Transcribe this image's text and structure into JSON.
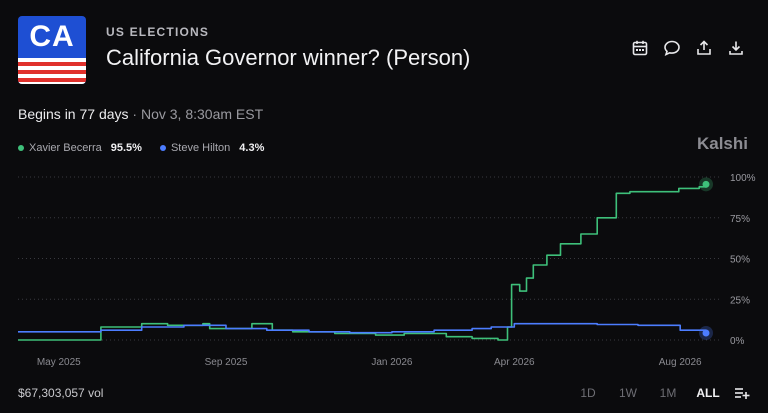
{
  "market": {
    "flag_code": "CA",
    "category": "US ELECTIONS",
    "title": "California Governor winner? (Person)",
    "begins_prefix": "Begins in 77 days",
    "begins_suffix": " · Nov 3, 8:30am EST",
    "brand": "Kalshi",
    "volume": "$67,303,057 vol"
  },
  "icons": {
    "calendar": "calendar-icon",
    "comment": "comment-icon",
    "share": "share-icon",
    "download": "download-icon",
    "add": "add-list-icon"
  },
  "legend": [
    {
      "name": "Xavier Becerra",
      "value": "95.5%",
      "color": "#3ec07a"
    },
    {
      "name": "Steve Hilton",
      "value": "4.3%",
      "color": "#4c7dff"
    }
  ],
  "ranges": [
    "1D",
    "1W",
    "1M",
    "ALL"
  ],
  "active_range": "ALL",
  "chart_data": {
    "type": "line",
    "x_tick_labels": [
      "May 2025",
      "Sep 2025",
      "Jan 2026",
      "Apr 2026",
      "Aug 2026"
    ],
    "y_tick_labels": [
      "100%",
      "75%",
      "50%",
      "25%",
      "0%"
    ],
    "ylim": [
      0,
      100
    ],
    "grid": true,
    "series": [
      {
        "name": "Xavier Becerra",
        "color": "#3ec07a",
        "x": [
          "2025-04-01",
          "2025-05-31",
          "2025-06-01",
          "2025-06-20",
          "2025-07-01",
          "2025-07-20",
          "2025-08-15",
          "2025-08-20",
          "2025-09-20",
          "2025-10-05",
          "2025-10-20",
          "2025-11-20",
          "2025-12-20",
          "2026-01-10",
          "2026-02-10",
          "2026-03-01",
          "2026-03-20",
          "2026-03-27",
          "2026-03-30",
          "2026-04-05",
          "2026-04-10",
          "2026-04-15",
          "2026-04-25",
          "2026-05-05",
          "2026-05-20",
          "2026-06-01",
          "2026-06-15",
          "2026-06-25",
          "2026-07-15",
          "2026-07-31",
          "2026-08-15",
          "2026-08-20"
        ],
        "y": [
          0,
          0,
          8,
          8,
          10,
          9,
          10,
          7,
          10,
          6,
          5,
          4,
          3,
          4,
          2,
          1,
          0,
          8,
          34,
          30,
          38,
          46,
          52,
          59,
          65,
          75,
          90,
          91,
          91,
          93,
          94,
          95.5
        ]
      },
      {
        "name": "Steve Hilton",
        "color": "#4c7dff",
        "x": [
          "2025-04-01",
          "2025-05-01",
          "2025-06-01",
          "2025-07-01",
          "2025-08-01",
          "2025-09-01",
          "2025-10-01",
          "2025-11-01",
          "2025-12-01",
          "2026-01-01",
          "2026-02-01",
          "2026-03-01",
          "2026-03-15",
          "2026-04-01",
          "2026-05-01",
          "2026-06-01",
          "2026-07-01",
          "2026-08-01",
          "2026-08-20"
        ],
        "y": [
          5,
          5,
          6,
          8,
          9,
          7,
          6,
          5,
          4.5,
          5,
          6,
          7,
          8,
          10,
          10,
          9.5,
          9,
          6,
          4.3
        ]
      }
    ]
  }
}
